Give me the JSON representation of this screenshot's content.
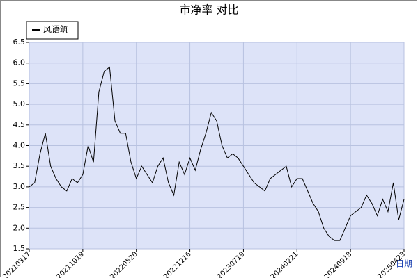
{
  "chart_data": {
    "type": "line",
    "title": "市净率  对比",
    "xlabel": "日期",
    "categories": [
      "20210317",
      null,
      null,
      null,
      null,
      null,
      null,
      null,
      null,
      null,
      "20211019",
      null,
      null,
      null,
      null,
      null,
      null,
      null,
      null,
      null,
      "20220520",
      null,
      null,
      null,
      null,
      null,
      null,
      null,
      null,
      null,
      "20221216",
      null,
      null,
      null,
      null,
      null,
      null,
      null,
      null,
      null,
      "20230719",
      null,
      null,
      null,
      null,
      null,
      null,
      null,
      null,
      null,
      "20240221",
      null,
      null,
      null,
      null,
      null,
      null,
      null,
      null,
      null,
      "20240918",
      null,
      null,
      null,
      null,
      null,
      null,
      null,
      null,
      null,
      "20250423"
    ],
    "series": [
      {
        "name": "风语筑",
        "color": "#000000",
        "values": [
          3.0,
          3.1,
          3.8,
          4.3,
          3.5,
          3.2,
          3.0,
          2.9,
          3.2,
          3.1,
          3.3,
          4.0,
          3.6,
          5.3,
          5.8,
          5.9,
          4.6,
          4.3,
          4.3,
          3.6,
          3.2,
          3.5,
          3.3,
          3.1,
          3.5,
          3.7,
          3.1,
          2.8,
          3.6,
          3.3,
          3.7,
          3.4,
          3.9,
          4.3,
          4.8,
          4.6,
          4.0,
          3.7,
          3.8,
          3.7,
          3.5,
          3.3,
          3.1,
          3.0,
          2.9,
          3.2,
          3.3,
          3.4,
          3.5,
          3.0,
          3.2,
          3.2,
          2.9,
          2.6,
          2.4,
          2.0,
          1.8,
          1.7,
          1.7,
          2.0,
          2.3,
          2.4,
          2.5,
          2.8,
          2.6,
          2.3,
          2.7,
          2.4,
          3.1,
          2.2,
          2.7
        ]
      }
    ],
    "ylim": [
      1.5,
      6.5
    ],
    "yticks": [
      1.5,
      {
        "value": 2,
        "label": "2.0"
      },
      2.5,
      {
        "value": 3,
        "label": "3.0"
      },
      3.5,
      {
        "value": 4,
        "label": "4.0"
      },
      4.5,
      {
        "value": 5,
        "label": "5.0"
      },
      5.5,
      {
        "value": 6,
        "label": "6.0"
      },
      6.5
    ],
    "grid": true
  }
}
